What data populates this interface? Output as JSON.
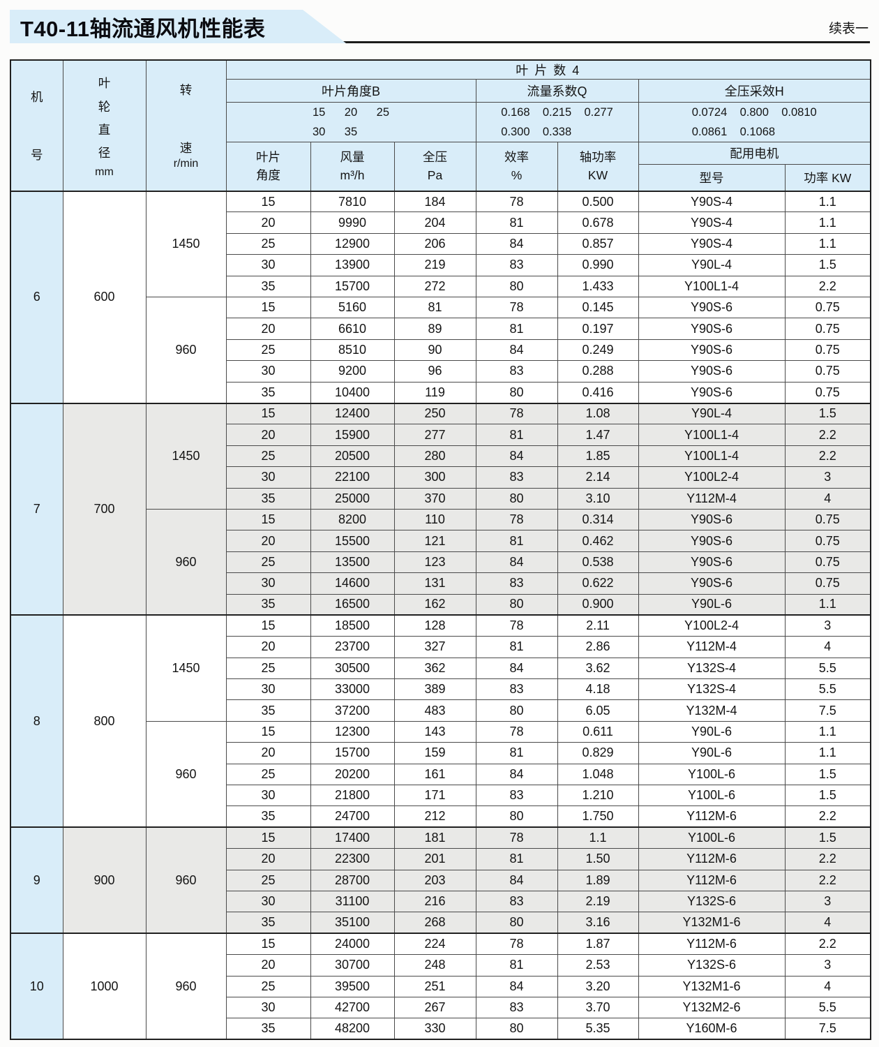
{
  "page": {
    "title": "T40-11轴流通风机性能表",
    "continuation_note": "续表一"
  },
  "table": {
    "header": {
      "machine_col": {
        "top": "机",
        "bottom": "号"
      },
      "diameter_col": {
        "chars": "叶\n轮\n直\n径",
        "unit": "mm"
      },
      "speed_col": {
        "top": "转",
        "bottom": "速",
        "unit": "r/min"
      },
      "blade_count_label": "叶 片 数 4",
      "groups": [
        {
          "label": "叶片角度B",
          "values": "15      20      25\n30      35"
        },
        {
          "label": "流量系数Q",
          "values": "0.168    0.215    0.277\n0.300    0.338"
        },
        {
          "label": "全压采效H",
          "values": "0.0724    0.800    0.0810\n0.0861    0.1068"
        }
      ],
      "sub_columns": [
        "叶片\n角度",
        "风量\nm³/h",
        "全压\nPa",
        "效率\n%",
        "轴功率\nKW"
      ],
      "motor_group_label": "配用电机",
      "motor_columns": [
        "型号",
        "功率 KW"
      ]
    },
    "groups": [
      {
        "machine": "6",
        "diameter": "600",
        "shaded": false,
        "speeds": [
          {
            "rpm": "1450",
            "rows": [
              [
                "15",
                "7810",
                "184",
                "78",
                "0.500",
                "Y90S-4",
                "1.1"
              ],
              [
                "20",
                "9990",
                "204",
                "81",
                "0.678",
                "Y90S-4",
                "1.1"
              ],
              [
                "25",
                "12900",
                "206",
                "84",
                "0.857",
                "Y90S-4",
                "1.1"
              ],
              [
                "30",
                "13900",
                "219",
                "83",
                "0.990",
                "Y90L-4",
                "1.5"
              ],
              [
                "35",
                "15700",
                "272",
                "80",
                "1.433",
                "Y100L1-4",
                "2.2"
              ]
            ]
          },
          {
            "rpm": "960",
            "rows": [
              [
                "15",
                "5160",
                "81",
                "78",
                "0.145",
                "Y90S-6",
                "0.75"
              ],
              [
                "20",
                "6610",
                "89",
                "81",
                "0.197",
                "Y90S-6",
                "0.75"
              ],
              [
                "25",
                "8510",
                "90",
                "84",
                "0.249",
                "Y90S-6",
                "0.75"
              ],
              [
                "30",
                "9200",
                "96",
                "83",
                "0.288",
                "Y90S-6",
                "0.75"
              ],
              [
                "35",
                "10400",
                "119",
                "80",
                "0.416",
                "Y90S-6",
                "0.75"
              ]
            ]
          }
        ]
      },
      {
        "machine": "7",
        "diameter": "700",
        "shaded": true,
        "speeds": [
          {
            "rpm": "1450",
            "rows": [
              [
                "15",
                "12400",
                "250",
                "78",
                "1.08",
                "Y90L-4",
                "1.5"
              ],
              [
                "20",
                "15900",
                "277",
                "81",
                "1.47",
                "Y100L1-4",
                "2.2"
              ],
              [
                "25",
                "20500",
                "280",
                "84",
                "1.85",
                "Y100L1-4",
                "2.2"
              ],
              [
                "30",
                "22100",
                "300",
                "83",
                "2.14",
                "Y100L2-4",
                "3"
              ],
              [
                "35",
                "25000",
                "370",
                "80",
                "3.10",
                "Y112M-4",
                "4"
              ]
            ]
          },
          {
            "rpm": "960",
            "rows": [
              [
                "15",
                "8200",
                "110",
                "78",
                "0.314",
                "Y90S-6",
                "0.75"
              ],
              [
                "20",
                "15500",
                "121",
                "81",
                "0.462",
                "Y90S-6",
                "0.75"
              ],
              [
                "25",
                "13500",
                "123",
                "84",
                "0.538",
                "Y90S-6",
                "0.75"
              ],
              [
                "30",
                "14600",
                "131",
                "83",
                "0.622",
                "Y90S-6",
                "0.75"
              ],
              [
                "35",
                "16500",
                "162",
                "80",
                "0.900",
                "Y90L-6",
                "1.1"
              ]
            ]
          }
        ]
      },
      {
        "machine": "8",
        "diameter": "800",
        "shaded": false,
        "speeds": [
          {
            "rpm": "1450",
            "rows": [
              [
                "15",
                "18500",
                "128",
                "78",
                "2.11",
                "Y100L2-4",
                "3"
              ],
              [
                "20",
                "23700",
                "327",
                "81",
                "2.86",
                "Y112M-4",
                "4"
              ],
              [
                "25",
                "30500",
                "362",
                "84",
                "3.62",
                "Y132S-4",
                "5.5"
              ],
              [
                "30",
                "33000",
                "389",
                "83",
                "4.18",
                "Y132S-4",
                "5.5"
              ],
              [
                "35",
                "37200",
                "483",
                "80",
                "6.05",
                "Y132M-4",
                "7.5"
              ]
            ]
          },
          {
            "rpm": "960",
            "rows": [
              [
                "15",
                "12300",
                "143",
                "78",
                "0.611",
                "Y90L-6",
                "1.1"
              ],
              [
                "20",
                "15700",
                "159",
                "81",
                "0.829",
                "Y90L-6",
                "1.1"
              ],
              [
                "25",
                "20200",
                "161",
                "84",
                "1.048",
                "Y100L-6",
                "1.5"
              ],
              [
                "30",
                "21800",
                "171",
                "83",
                "1.210",
                "Y100L-6",
                "1.5"
              ],
              [
                "35",
                "24700",
                "212",
                "80",
                "1.750",
                "Y112M-6",
                "2.2"
              ]
            ]
          }
        ]
      },
      {
        "machine": "9",
        "diameter": "900",
        "shaded": true,
        "speeds": [
          {
            "rpm": "960",
            "rows": [
              [
                "15",
                "17400",
                "181",
                "78",
                "1.1",
                "Y100L-6",
                "1.5"
              ],
              [
                "20",
                "22300",
                "201",
                "81",
                "1.50",
                "Y112M-6",
                "2.2"
              ],
              [
                "25",
                "28700",
                "203",
                "84",
                "1.89",
                "Y112M-6",
                "2.2"
              ],
              [
                "30",
                "31100",
                "216",
                "83",
                "2.19",
                "Y132S-6",
                "3"
              ],
              [
                "35",
                "35100",
                "268",
                "80",
                "3.16",
                "Y132M1-6",
                "4"
              ]
            ]
          }
        ]
      },
      {
        "machine": "10",
        "diameter": "1000",
        "shaded": false,
        "speeds": [
          {
            "rpm": "960",
            "rows": [
              [
                "15",
                "24000",
                "224",
                "78",
                "1.87",
                "Y112M-6",
                "2.2"
              ],
              [
                "20",
                "30700",
                "248",
                "81",
                "2.53",
                "Y132S-6",
                "3"
              ],
              [
                "25",
                "39500",
                "251",
                "84",
                "3.20",
                "Y132M1-6",
                "4"
              ],
              [
                "30",
                "42700",
                "267",
                "83",
                "3.70",
                "Y132M2-6",
                "5.5"
              ],
              [
                "35",
                "48200",
                "330",
                "80",
                "5.35",
                "Y160M-6",
                "7.5"
              ]
            ]
          }
        ]
      }
    ]
  }
}
